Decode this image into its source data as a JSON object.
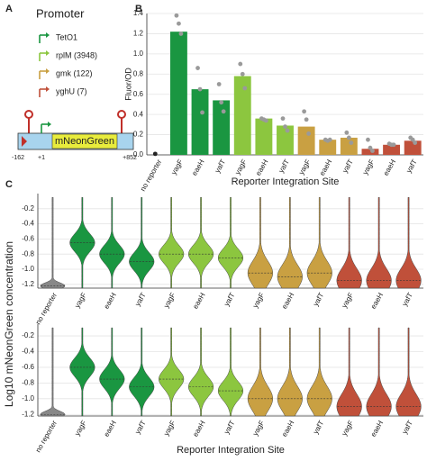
{
  "panel_a": {
    "label": "A",
    "title": "Promoter",
    "promoters": [
      {
        "name": "TetO1",
        "color": "#1a9641"
      },
      {
        "name": "rplM (3948)",
        "color": "#8cc63f"
      },
      {
        "name": "gmk (122)",
        "color": "#c9a042"
      },
      {
        "name": "yghU (7)",
        "color": "#c0503a"
      }
    ],
    "construct": {
      "gene": "mNeonGreen",
      "positions": [
        "-162",
        "+1",
        "+852"
      ]
    }
  },
  "chart_data": [
    {
      "type": "bar",
      "panel_label": "B",
      "ylabel": "Fluor/OD",
      "xlabel": "Reporter Integration Site",
      "categories": [
        "no reporter",
        "yagF",
        "eaeH",
        "yafT",
        "yagF",
        "eaeH",
        "yafT",
        "yagF",
        "eaeH",
        "yafT",
        "yagF",
        "eaeH",
        "yafT"
      ],
      "values": [
        0,
        1.22,
        0.65,
        0.54,
        0.78,
        0.36,
        0.29,
        0.28,
        0.15,
        0.17,
        0.06,
        0.1,
        0.14
      ],
      "replicates": [
        [
          0.01
        ],
        [
          1.38,
          1.3,
          1.2
        ],
        [
          0.86,
          0.65,
          0.42
        ],
        [
          0.7,
          0.52,
          0.43
        ],
        [
          0.9,
          0.8,
          0.66
        ],
        [
          0.36,
          0.35,
          0.34
        ],
        [
          0.36,
          0.28,
          0.24
        ],
        [
          0.43,
          0.35,
          0.21
        ],
        [
          0.15,
          0.14,
          0.15
        ],
        [
          0.22,
          0.17,
          0.12
        ],
        [
          0.15,
          0.07,
          0.04
        ],
        [
          0.11,
          0.1,
          0.1
        ],
        [
          0.17,
          0.15,
          0.12
        ]
      ],
      "colors": [
        "#888888",
        "#1a9641",
        "#1a9641",
        "#1a9641",
        "#8cc63f",
        "#8cc63f",
        "#8cc63f",
        "#c9a042",
        "#c9a042",
        "#c9a042",
        "#c0503a",
        "#c0503a",
        "#c0503a"
      ],
      "ylim": [
        0,
        1.4
      ],
      "yticks": [
        {
          "value": 0,
          "label": "0.0"
        },
        0.2,
        0.4,
        0.6,
        0.8,
        {
          "value": 1,
          "label": "1.0"
        },
        1.2,
        1.4
      ],
      "grid": true
    },
    {
      "type": "violin",
      "panel_label": "C",
      "ylabel": "Log10 mNeonGreen concentration",
      "categories": [
        "no reporter",
        "yagF",
        "eaeH",
        "yafT",
        "yagF",
        "eaeH",
        "yafT",
        "yagF",
        "eaeH",
        "yafT",
        "yagF",
        "eaeH",
        "yafT"
      ],
      "medians": [
        -1.22,
        -0.65,
        -0.8,
        -0.9,
        -0.8,
        -0.8,
        -0.85,
        -1.05,
        -1.1,
        -1.05,
        -1.15,
        -1.15,
        -1.15
      ],
      "colors": [
        "#888888",
        "#1a9641",
        "#1a9641",
        "#1a9641",
        "#8cc63f",
        "#8cc63f",
        "#8cc63f",
        "#c9a042",
        "#c9a042",
        "#c9a042",
        "#c0503a",
        "#c0503a",
        "#c0503a"
      ],
      "ylim": [
        -1.25,
        0
      ],
      "yticks": [
        -0.2,
        -0.4,
        -0.6,
        -0.8,
        {
          "value": -1,
          "label": "-1.0"
        },
        -1.2
      ],
      "grid": true
    },
    {
      "type": "violin",
      "xlabel": "Reporter Integration Site",
      "categories": [
        "no reporter",
        "yagF",
        "eaeH",
        "yafT",
        "yagF",
        "eaeH",
        "yafT",
        "yagF",
        "eaeH",
        "yafT",
        "yagF",
        "eaeH",
        "yafT"
      ],
      "medians": [
        -1.2,
        -0.6,
        -0.75,
        -0.85,
        -0.75,
        -0.85,
        -0.9,
        -1.0,
        -1.0,
        -1.0,
        -1.1,
        -1.1,
        -1.1
      ],
      "colors": [
        "#888888",
        "#1a9641",
        "#1a9641",
        "#1a9641",
        "#8cc63f",
        "#8cc63f",
        "#8cc63f",
        "#c9a042",
        "#c9a042",
        "#c9a042",
        "#c0503a",
        "#c0503a",
        "#c0503a"
      ],
      "ylim": [
        -1.22,
        -0.05
      ],
      "yticks": [
        -0.2,
        -0.4,
        -0.6,
        -0.8,
        {
          "value": -1,
          "label": "-1.0"
        },
        -1.2
      ],
      "grid": true
    }
  ]
}
